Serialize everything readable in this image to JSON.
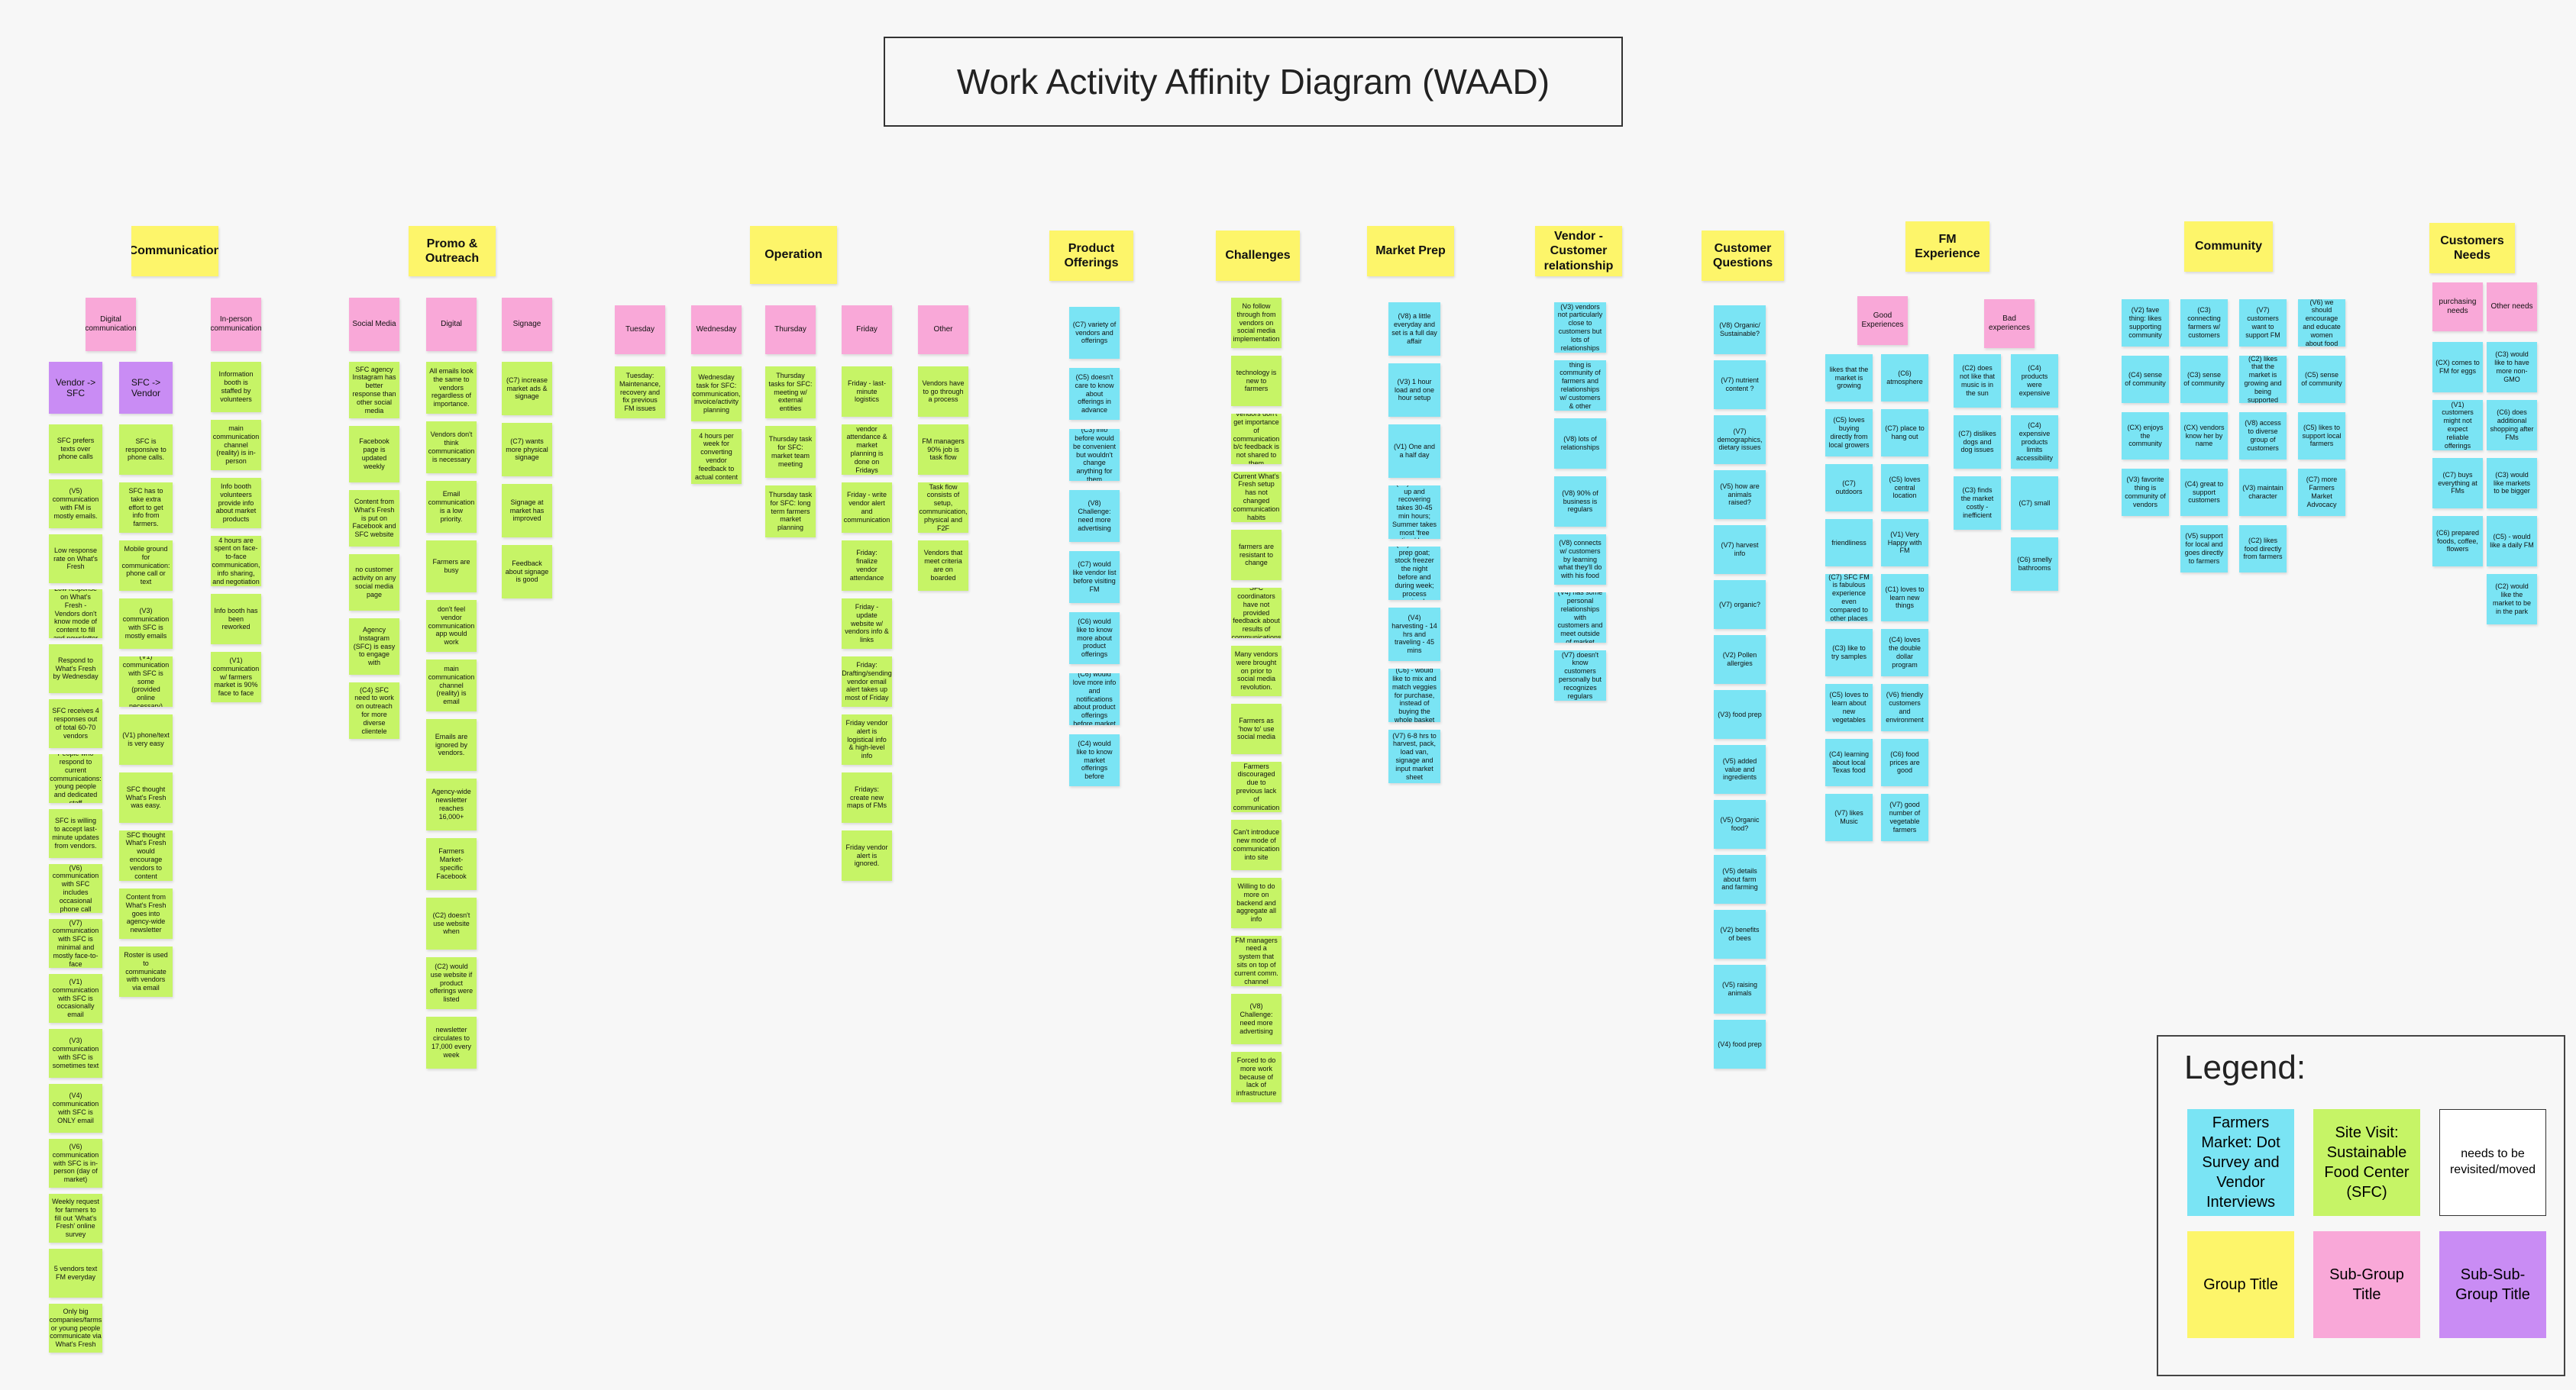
{
  "title": "Work Activity Affinity Diagram (WAAD)",
  "legend": {
    "title": "Legend:",
    "items": [
      {
        "label": "Farmers Market: Dot Survey and Vendor Interviews",
        "color": "#7ae4f4"
      },
      {
        "label": "Site Visit: Sustainable Food Center (SFC)",
        "color": "#c6f466"
      },
      {
        "label": "needs to be revisited/moved",
        "color": "#ffffff"
      },
      {
        "label": "Group Title",
        "color": "#fdf56a"
      },
      {
        "label": "Sub-Group Title",
        "color": "#f9a8d8"
      },
      {
        "label": "Sub-Sub-Group Title",
        "color": "#c98cf4"
      }
    ]
  },
  "groups": [
    {
      "title": "Communication"
    },
    {
      "title": "Promo & Outreach"
    },
    {
      "title": "Operation"
    },
    {
      "title": "Product Offerings"
    },
    {
      "title": "Challenges"
    },
    {
      "title": "Market Prep"
    },
    {
      "title": "Vendor - Customer relationship"
    },
    {
      "title": "Customer Questions"
    },
    {
      "title": "FM Experience"
    },
    {
      "title": "Community"
    },
    {
      "title": "Customers Needs"
    }
  ],
  "subgroups": {
    "digital_communication": "Digital communication",
    "in_person_communication": "In-person communication",
    "social_media": "Social Media",
    "digital": "Digital",
    "signage": "Signage",
    "tuesday": "Tuesday",
    "wednesday": "Wednesday",
    "thursday": "Thursday",
    "friday": "Friday",
    "other": "Other",
    "good_experiences": "Good Experiences",
    "bad_experiences": "Bad experiences",
    "purchasing_needs": "purchasing needs",
    "other_needs": "Other needs"
  },
  "subsubgroups": {
    "vendor_to_sfc": "Vendor -> SFC",
    "sfc_to_vendor": "SFC -> Vendor"
  },
  "notes": {
    "comm_col1": [
      "SFC prefers texts over phone calls",
      "(V5) communication with FM is mostly emails.",
      "Low response rate on What's Fresh",
      "Low response on What's Fresh - Vendors don't know mode of content to fill and newsletter",
      "Respond to What's Fresh by Wednesday",
      "SFC receives 4 responses out of total 60-70 vendors",
      "People who respond to current communications: young people and dedicated staff",
      "SFC is willing to accept last-minute updates from vendors.",
      "(V6) communication with SFC includes occasional phone call",
      "(V7) communication with SFC is minimal and mostly face-to-face",
      "(V1) communication with SFC is occasionally email",
      "(V3) communication with SFC is sometimes text",
      "(V4) communication with SFC is ONLY email",
      "(V6) communication with SFC is in-person (day of market)",
      "Weekly request for farmers to fill out 'What's Fresh' online survey",
      "5 vendors text FM everyday",
      "Only big companies/farms or young people communicate via What's Fresh"
    ],
    "comm_col2": [
      "SFC is responsive to phone calls.",
      "SFC has to take extra effort to get info from farmers.",
      "Mobile ground for communication: phone call or text",
      "(V3) communication with SFC is mostly emails",
      "(V1) communication with SFC is some (provided online necessary)",
      "(V1) phone/text is very easy",
      "SFC thought What's Fresh was easy.",
      "SFC thought What's Fresh would encourage vendors to content",
      "Content from What's Fresh goes into agency-wide newsletter",
      "Roster is used to communicate with vendors via email"
    ],
    "comm_col3": [
      "Information booth is staffed by volunteers",
      "main communication channel (reality) is in-person",
      "Info booth volunteers provide info about market products",
      "4 hours are spent on face-to-face communication, info sharing, and negotiation",
      "Info booth has been reworked",
      "(V1) communication w/ farmers market is 90% face to face"
    ],
    "promo_social": [
      "SFC agency Instagram has better response than other social media",
      "Facebook page is updated weekly",
      "Content from What's Fresh is put on Facebook and SFC website",
      "no customer activity on any social media page",
      "Agency Instagram (SFC) is easy to engage with",
      "(C4) SFC need to work on outreach for more diverse clientele"
    ],
    "promo_digital": [
      "All emails look the same to vendors regardless of importance.",
      "Vendors don't think communication is necessary",
      "Email communication is a low priority.",
      "Farmers are busy",
      "don't feel vendor communication app would work",
      "main communication channel (reality) is email",
      "Emails are ignored by vendors.",
      "Agency-wide newsletter reaches 16,000+",
      "Farmers Market-specific Facebook",
      "(C2) doesn't use website when",
      "(C2) would use website if product offerings were listed",
      "newsletter circulates to 17,000 every week"
    ],
    "promo_signage": [
      "(C7) increase market ads & signage",
      "(C7) wants more physical signage",
      "Signage at market has improved",
      "Feedback about signage is good"
    ],
    "op_tuesday": [
      "Tuesday: Maintenance, recovery and fix previous FM issues"
    ],
    "op_wednesday": [
      "Wednesday task for SFC: communication, invoice/activity planning",
      "4 hours per week for converting vendor feedback to actual content"
    ],
    "op_thursday": [
      "Thursday tasks for SFC: meeting w/ external entities",
      "Thursday task for SFC: market team meeting",
      "Thursday task for SFC: long term farmers market planning"
    ],
    "op_friday": [
      "Friday - last-minute logistics",
      "vendor attendance & market planning is done on Fridays",
      "Friday - write vendor alert and communication",
      "Friday: finalize vendor attendance",
      "Friday - update website w/ vendors info & links",
      "Friday: Drafting/sending vendor email alert takes up most of Friday",
      "Friday vendor alert is logistical info & high-level info",
      "Fridays: create new maps of FMs",
      "Friday vendor alert is ignored."
    ],
    "op_other": [
      "Vendors have to go through a process",
      "FM managers 90% job is task flow",
      "Task flow consists of setup, communication, physical and F2F",
      "Vendors that meet criteria are on boarded"
    ],
    "product": [
      "(C7) variety of vendors and offerings",
      "(C5) doesn't care to know about offerings in advance",
      "(C3) info before would be convenient but wouldn't change anything for them",
      "(V8) Challenge: need more advertising",
      "(C7) would like vendor list before visiting FM",
      "(C6) would like to know more about product offerings",
      "(C6) would love more info and notifications about product offerings before market",
      "(C4) would like to know market offerings before"
    ],
    "challenges": [
      "No follow through from vendors on social media implementation",
      "technology is new to farmers",
      "Vendors don't get importance of communication b/c feedback is not shared to them",
      "Current What's Fresh setup has not changed communication habits",
      "farmers are resistant to change",
      "SFC coordinators have not provided feedback about results of communications",
      "Many vendors were brought on prior to social media revolution.",
      "Farmers as 'how to' use social media",
      "Farmers discouraged due to previous lack of communication",
      "Can't introduce new mode of communication into site",
      "Willing to do more on backend and aggregate all info",
      "FM managers need a system that sits on top of current comm. channel",
      "(V8) Challenge: need more advertising",
      "Forced to do more work because of lack of infrastructure"
    ],
    "market_prep": [
      "(V8) a little everyday and set is a full day affair",
      "(V3) 1 hour load and one hour setup",
      "(V1) One and a half day",
      "(V5) it takes up and recovering takes 30-45 min hours; Summer takes most 'free time' hrs",
      "(V6) 2-3 hrs prep goat; stock freezer the night before and during week; process animal",
      "(V4) harvesting - 14 hrs and traveling - 45 mins",
      "(C6) - would like to mix and match veggies for purchase, instead of buying the whole basket",
      "(V7) 6-8 hrs to harvest, pack, load van, signage and input market sheet"
    ],
    "vendor_customer": [
      "(V3) vendors not particularly close to customers but lots of relationships",
      "(V3) favorite thing is community of farmers and relationships w/ customers & other families",
      "(V8) lots of relationships",
      "(V8) 90% of business is regulars",
      "(V8) connects w/ customers by learning what they'll do with his food",
      "(V4) has some personal relationships with customers and meet outside of market",
      "(V7) doesn't know customers personally but recognizes regulars"
    ],
    "customer_q": [
      "(V8) Organic/ Sustainable?",
      "(V7) nutrient content ?",
      "(V7) demographics, dietary issues",
      "(V5) how are animals raised?",
      "(V7) harvest info",
      "(V7) organic?",
      "(V2) Pollen allergies",
      "(V3) food prep",
      "(V5) added value and ingredients",
      "(V5) Organic food?",
      "(V5) details about farm and farming",
      "(V2) benefits of bees",
      "(V5) raising animals",
      "(V4) food prep"
    ],
    "fm_good1": [
      "likes that the market is growing",
      "(C5) loves buying directly from local growers",
      "(C7) outdoors",
      "friendliness",
      "(C7) SFC FM is fabulous experience even compared to other places",
      "(C3) like to try samples",
      "(C5) loves to learn about new vegetables",
      "(C4) learning about local Texas food",
      "(V7) likes Music"
    ],
    "fm_good2": [
      "(C6) atmosphere",
      "(C7) place to hang out",
      "(C5) loves central location",
      "(V1) Very Happy with FM",
      "(C1) loves to learn new things",
      "(C4) loves the double dollar program",
      "(V6) friendly customers and environment",
      "(C6) food prices are good",
      "(V7) good number of vegetable farmers"
    ],
    "fm_bad1": [
      "(C2) does not like that music is in the sun",
      "(C7) dislikes dogs and dog issues",
      "(C3) finds the market costly - inefficient"
    ],
    "fm_bad2": [
      "(C4) products were expensive",
      "(C4) expensive products limits accessibility",
      "(C7) small",
      "(C6) smelly bathrooms"
    ],
    "community1": [
      "(V2) fave thing: likes supporting community",
      "(C4) sense of community",
      "(CX) enjoys the community",
      "(V3) favorite thing is community of vendors"
    ],
    "community2": [
      "(C3) connecting farmers w/ customers",
      "(C3) sense of community",
      "(CX) vendors know her by name",
      "(C4) great to support customers",
      "(V5) support for local and goes directly to farmers"
    ],
    "community3": [
      "(V7) customers want to support FM",
      "(C2) likes that the market is growing and being supported",
      "(V8) access to diverse group of customers",
      "(V3) maintain character",
      "(C2) likes food directly from farmers"
    ],
    "community4": [
      "(V6) we should encourage and educate women about food",
      "(C5) sense of community",
      "(C5) likes to support local farmers",
      "(C7) more Farmers Market Advocacy"
    ],
    "needs_purchasing": [
      "(CX) comes to FM for eggs",
      "(V1) customers might not expect reliable offerings",
      "(C7) buys everything at FMs",
      "(C6) prepared foods, coffee, flowers"
    ],
    "needs_other": [
      "(C3) would like to have more non-GMO",
      "(C6) does additional shopping after FMs",
      "(C3) would like markets to be bigger",
      "(C5) - would like a daily FM",
      "(C2) would like the market to be in the park"
    ]
  }
}
